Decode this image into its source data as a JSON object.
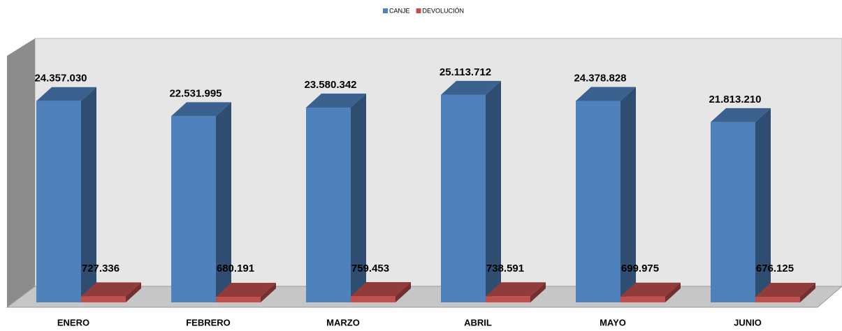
{
  "chart_data": {
    "type": "bar3d",
    "categories": [
      "ENERO",
      "FEBRERO",
      "MARZO",
      "ABRIL",
      "MAYO",
      "JUNIO"
    ],
    "series": [
      {
        "name": "CANJE",
        "color": "#4f81bd",
        "values": [
          24357030,
          22531995,
          23580342,
          25113712,
          24378828,
          21813210
        ],
        "value_labels": [
          "24.357.030",
          "22.531.995",
          "23.580.342",
          "25.113.712",
          "24.378.828",
          "21.813.210"
        ]
      },
      {
        "name": "DEVOLUCIÓN",
        "color": "#c0504d",
        "values": [
          727336,
          680191,
          759453,
          738591,
          699975,
          676125
        ],
        "value_labels": [
          "727.336",
          "680.191",
          "759.453",
          "738.591",
          "699.975",
          "676.125"
        ]
      }
    ],
    "ylim": [
      0,
      30000000
    ],
    "legend": "top"
  }
}
